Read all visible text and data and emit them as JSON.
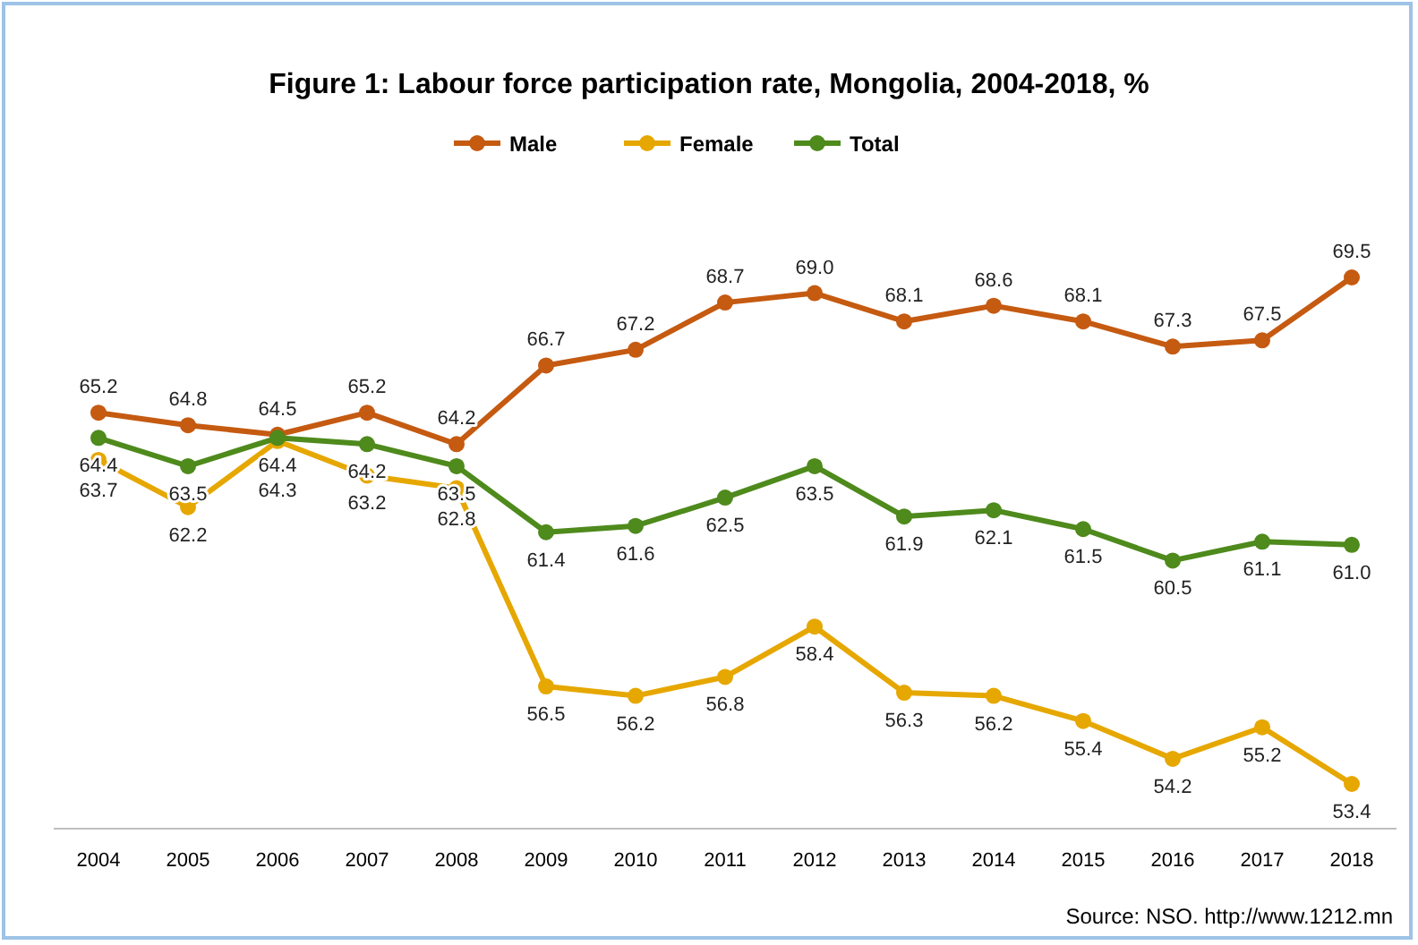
{
  "chart_data": {
    "type": "line",
    "title": "Figure 1: Labour force participation rate, Mongolia, 2004-2018, %",
    "categories": [
      "2004",
      "2005",
      "2006",
      "2007",
      "2008",
      "2009",
      "2010",
      "2011",
      "2012",
      "2013",
      "2014",
      "2015",
      "2016",
      "2017",
      "2018"
    ],
    "series": [
      {
        "name": "Male",
        "color": "#c55a11",
        "values": [
          65.2,
          64.8,
          64.5,
          65.2,
          64.2,
          66.7,
          67.2,
          68.7,
          69.0,
          68.1,
          68.6,
          68.1,
          67.3,
          67.5,
          69.5
        ],
        "value_labels": [
          "65.2",
          "64.8",
          "64.5",
          "65.2",
          "64.2",
          "66.7",
          "67.2",
          "68.7",
          "69.0",
          "68.1",
          "68.6",
          "68.1",
          "67.3",
          "67.5",
          "69.5"
        ]
      },
      {
        "name": "Female",
        "color": "#e6a700",
        "values": [
          63.7,
          62.2,
          64.3,
          63.2,
          62.8,
          56.5,
          56.2,
          56.8,
          58.4,
          56.3,
          56.2,
          55.4,
          54.2,
          55.2,
          53.4
        ],
        "value_labels": [
          "63.7",
          "62.2",
          "64.3",
          "63.2",
          "62.8",
          "56.5",
          "56.2",
          "56.8",
          "58.4",
          "56.3",
          "56.2",
          "55.4",
          "54.2",
          "55.2",
          "53.4"
        ]
      },
      {
        "name": "Total",
        "color": "#4e8a1c",
        "values": [
          64.4,
          63.5,
          64.4,
          64.2,
          63.5,
          61.4,
          61.6,
          62.5,
          63.5,
          61.9,
          62.1,
          61.5,
          60.5,
          61.1,
          61.0
        ],
        "value_labels": [
          "64.4",
          "63.5",
          "64.4",
          "64.2",
          "63.5",
          "61.4",
          "61.6",
          "62.5",
          "63.5",
          "61.9",
          "62.1",
          "61.5",
          "60.5",
          "61.1",
          "61.0"
        ]
      }
    ],
    "legend": "top",
    "marker": "circle",
    "line_style": "solid",
    "grid": false,
    "tick_labels": "x",
    "annotations": [
      "Source: NSO. http://www.1212.mn"
    ]
  }
}
